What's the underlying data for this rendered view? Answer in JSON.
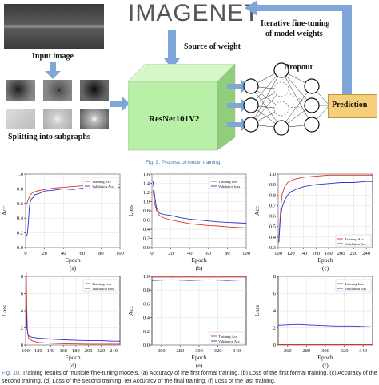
{
  "fig9": {
    "input_image_label": "Input image",
    "split_label": "Splitting into subgraphs",
    "source_label": "Source of weight",
    "imagenet_logo": "IMAGENET",
    "resnet_label": "ResNet101V2",
    "dropout_label": "Dropout",
    "prediction_label": "Prediction",
    "iterative_label_line1": "Iterative fine-tuning",
    "iterative_label_line2": "of model weights",
    "caption": "Fig. 9.  Process of model training."
  },
  "fig10": {
    "caption_prefix": "Fig. 10.",
    "caption_text": "Training results of multiple fine-tuning models. (a) Accuracy of the first formal training. (b) Loss of the first formal training. (c) Accuracy of the second training. (d) Loss of the second training. (e) Accuracy of the final training. (f) Loss of the last training."
  },
  "colors": {
    "train": "#e0302a",
    "val": "#2a33d6",
    "accent": "#7ea6d6",
    "resnet": "#b7f0a6",
    "prediction": "#f7cf7a"
  },
  "chart_data": [
    {
      "id": "a",
      "type": "line",
      "sub_label": "(a)",
      "xlabel": "Epoch",
      "ylabel": "Acc",
      "xlim": [
        0,
        100
      ],
      "ylim": [
        0.0,
        1.0
      ],
      "xticks": [
        "0",
        "20",
        "40",
        "60",
        "80",
        "100"
      ],
      "yticks": [
        "0.0",
        "0.2",
        "0.4",
        "0.6",
        "0.8",
        "1.0"
      ],
      "legend": [
        "Training Acc",
        "Validation Acc"
      ],
      "series": [
        {
          "name": "Training Acc",
          "x": [
            1,
            3,
            5,
            8,
            12,
            20,
            30,
            40,
            50,
            60,
            70,
            80,
            90,
            100
          ],
          "y": [
            0.58,
            0.66,
            0.72,
            0.75,
            0.77,
            0.79,
            0.81,
            0.82,
            0.83,
            0.84,
            0.84,
            0.85,
            0.85,
            0.86
          ]
        },
        {
          "name": "Validation Acc",
          "x": [
            1,
            2,
            3,
            4,
            5,
            6,
            8,
            10,
            15,
            20,
            30,
            40,
            50,
            60,
            70,
            80,
            90,
            100
          ],
          "y": [
            0.15,
            0.2,
            0.35,
            0.55,
            0.62,
            0.66,
            0.68,
            0.72,
            0.74,
            0.77,
            0.78,
            0.8,
            0.79,
            0.81,
            0.8,
            0.82,
            0.81,
            0.82
          ]
        }
      ]
    },
    {
      "id": "b",
      "type": "line",
      "sub_label": "(b)",
      "xlabel": "Epoch",
      "ylabel": "Loss",
      "xlim": [
        0,
        100
      ],
      "ylim": [
        0.0,
        1.6
      ],
      "xticks": [
        "0",
        "20",
        "40",
        "60",
        "80",
        "100"
      ],
      "yticks": [
        "0.0",
        "0.2",
        "0.4",
        "0.6",
        "0.8",
        "1.0",
        "1.2",
        "1.4",
        "1.6"
      ],
      "legend": [
        "Training loss",
        "Validation loss"
      ],
      "series": [
        {
          "name": "Training loss",
          "x": [
            1,
            3,
            5,
            8,
            12,
            20,
            30,
            40,
            50,
            60,
            70,
            80,
            90,
            100
          ],
          "y": [
            1.25,
            0.95,
            0.8,
            0.7,
            0.65,
            0.6,
            0.56,
            0.52,
            0.5,
            0.48,
            0.47,
            0.45,
            0.44,
            0.43
          ]
        },
        {
          "name": "Validation loss",
          "x": [
            1,
            2,
            3,
            5,
            8,
            12,
            20,
            30,
            40,
            50,
            60,
            70,
            80,
            90,
            100
          ],
          "y": [
            1.45,
            1.3,
            1.1,
            0.85,
            0.75,
            0.72,
            0.7,
            0.65,
            0.62,
            0.6,
            0.58,
            0.56,
            0.55,
            0.54,
            0.53
          ]
        }
      ]
    },
    {
      "id": "c",
      "type": "line",
      "sub_label": "(c)",
      "xlabel": "Epoch",
      "ylabel": "Acc",
      "xlim": [
        100,
        250
      ],
      "ylim": [
        0.3,
        1.0
      ],
      "xticks": [
        "100",
        "120",
        "140",
        "160",
        "180",
        "200",
        "220",
        "240"
      ],
      "yticks": [
        "0.3",
        "0.4",
        "0.5",
        "0.6",
        "0.7",
        "0.8",
        "0.9",
        "1.0"
      ],
      "legend": [
        "Training Acc",
        "Validation Acc"
      ],
      "series": [
        {
          "name": "Training Acc",
          "x": [
            101,
            103,
            106,
            110,
            115,
            125,
            140,
            160,
            180,
            200,
            220,
            240,
            250
          ],
          "y": [
            0.35,
            0.6,
            0.8,
            0.88,
            0.92,
            0.95,
            0.97,
            0.98,
            0.99,
            0.99,
            0.99,
            0.99,
            0.99
          ]
        },
        {
          "name": "Validation Acc",
          "x": [
            101,
            103,
            106,
            110,
            115,
            120,
            130,
            140,
            160,
            180,
            200,
            220,
            240,
            250
          ],
          "y": [
            0.35,
            0.55,
            0.68,
            0.75,
            0.8,
            0.83,
            0.86,
            0.88,
            0.9,
            0.91,
            0.92,
            0.92,
            0.93,
            0.93
          ]
        }
      ]
    },
    {
      "id": "d",
      "type": "line",
      "sub_label": "(d)",
      "xlabel": "Epoch",
      "ylabel": "Loss",
      "xlim": [
        100,
        250
      ],
      "ylim": [
        0,
        8
      ],
      "xticks": [
        "100",
        "120",
        "140",
        "160",
        "180",
        "200",
        "220",
        "240"
      ],
      "yticks": [
        "0",
        "2",
        "4",
        "6",
        "8"
      ],
      "legend": [
        "Training loss",
        "Validation loss"
      ],
      "series": [
        {
          "name": "Training loss",
          "x": [
            101,
            102,
            103,
            105,
            110,
            120,
            140,
            160,
            180,
            200,
            220,
            240,
            250
          ],
          "y": [
            8.6,
            4.0,
            1.5,
            0.8,
            0.5,
            0.3,
            0.2,
            0.15,
            0.12,
            0.1,
            0.1,
            0.1,
            0.1
          ]
        },
        {
          "name": "Validation loss",
          "x": [
            101,
            102,
            104,
            106,
            110,
            120,
            140,
            160,
            180,
            200,
            220,
            240,
            250
          ],
          "y": [
            4.5,
            2.0,
            1.2,
            1.0,
            0.9,
            0.8,
            0.7,
            0.6,
            0.55,
            0.5,
            0.5,
            0.45,
            0.45
          ]
        }
      ]
    },
    {
      "id": "e",
      "type": "line",
      "sub_label": "(e)",
      "xlabel": "Epoch",
      "ylabel": "Acc",
      "xlim": [
        250,
        350
      ],
      "ylim": [
        0.0,
        1.0
      ],
      "xticks": [
        "260",
        "280",
        "300",
        "320",
        "340"
      ],
      "yticks": [
        "0.0",
        "0.2",
        "0.4",
        "0.6",
        "0.8",
        "1.0"
      ],
      "legend": [
        "Training Acc",
        "Validation Acc"
      ],
      "series": [
        {
          "name": "Training Acc",
          "x": [
            250,
            270,
            290,
            310,
            330,
            350
          ],
          "y": [
            0.99,
            0.99,
            0.99,
            0.99,
            0.99,
            0.99
          ]
        },
        {
          "name": "Validation Acc",
          "x": [
            250,
            270,
            290,
            310,
            330,
            350
          ],
          "y": [
            0.94,
            0.95,
            0.94,
            0.95,
            0.94,
            0.95
          ]
        }
      ]
    },
    {
      "id": "f",
      "type": "line",
      "sub_label": "(f)",
      "xlabel": "Epoch",
      "ylabel": "Loss",
      "xlim": [
        250,
        350
      ],
      "ylim": [
        0,
        8
      ],
      "xticks": [
        "260",
        "280",
        "300",
        "320",
        "340"
      ],
      "yticks": [
        "0",
        "2",
        "4",
        "6",
        "8"
      ],
      "legend": [
        "Training loss",
        "Validation loss"
      ],
      "series": [
        {
          "name": "Training loss",
          "x": [
            250,
            270,
            290,
            310,
            330,
            350
          ],
          "y": [
            0.05,
            0.05,
            0.05,
            0.05,
            0.05,
            0.05
          ]
        },
        {
          "name": "Validation loss",
          "x": [
            250,
            270,
            290,
            310,
            330,
            350
          ],
          "y": [
            2.3,
            2.4,
            2.3,
            2.2,
            2.2,
            2.1
          ]
        }
      ]
    }
  ]
}
